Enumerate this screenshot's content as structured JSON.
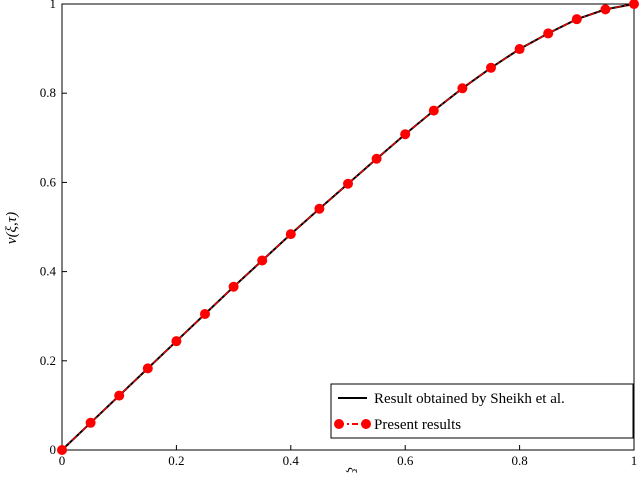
{
  "chart_data": {
    "type": "line",
    "title": "",
    "xlabel": "ξ",
    "ylabel": "v(ξ,τ)",
    "xlim": [
      0,
      1
    ],
    "ylim": [
      0,
      1
    ],
    "x_ticks": [
      "0",
      "0.2",
      "0.4",
      "0.6",
      "0.8",
      "1"
    ],
    "y_ticks": [
      "0",
      "0.2",
      "0.4",
      "0.6",
      "0.8",
      "1"
    ],
    "grid": false,
    "legend_position": "bottom-right",
    "series": [
      {
        "name": "Result obtained by Sheikh et al.",
        "style": "solid-line",
        "color": "#000000",
        "x": [
          0,
          0.05,
          0.1,
          0.15,
          0.2,
          0.25,
          0.3,
          0.35,
          0.4,
          0.45,
          0.5,
          0.55,
          0.6,
          0.65,
          0.7,
          0.75,
          0.8,
          0.85,
          0.9,
          0.95,
          1.0
        ],
        "y": [
          0,
          0.061,
          0.122,
          0.183,
          0.244,
          0.305,
          0.366,
          0.425,
          0.484,
          0.541,
          0.597,
          0.653,
          0.708,
          0.761,
          0.811,
          0.857,
          0.899,
          0.934,
          0.966,
          0.988,
          1.0
        ]
      },
      {
        "name": "Present results",
        "style": "dash-dot-markers",
        "color": "#ff0000",
        "x": [
          0,
          0.05,
          0.1,
          0.15,
          0.2,
          0.25,
          0.3,
          0.35,
          0.4,
          0.45,
          0.5,
          0.55,
          0.6,
          0.65,
          0.7,
          0.75,
          0.8,
          0.85,
          0.9,
          0.95,
          1.0
        ],
        "y": [
          0,
          0.061,
          0.122,
          0.183,
          0.244,
          0.305,
          0.366,
          0.425,
          0.484,
          0.541,
          0.597,
          0.653,
          0.708,
          0.761,
          0.811,
          0.857,
          0.899,
          0.934,
          0.966,
          0.988,
          1.0
        ]
      }
    ]
  }
}
